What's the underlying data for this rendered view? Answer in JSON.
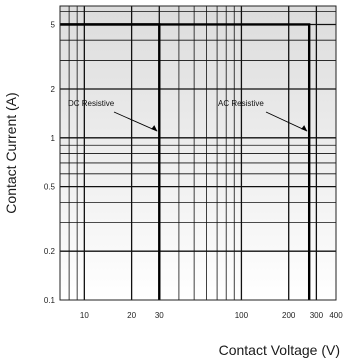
{
  "chart_data": {
    "type": "line",
    "title": "",
    "xlabel": "Contact Voltage (V)",
    "ylabel": "Contact Current (A)",
    "x_scale": "log",
    "y_scale": "log",
    "xlim": [
      7,
      400
    ],
    "ylim": [
      0.1,
      6.5
    ],
    "grid": true,
    "x_tick_values": [
      10,
      20,
      30,
      100,
      200,
      300,
      400
    ],
    "x_tick_labels": [
      "10",
      "20",
      "30",
      "100",
      "200",
      "300",
      "400"
    ],
    "y_tick_values": [
      5,
      2,
      1,
      0.5,
      0.2,
      0.1
    ],
    "y_tick_labels": [
      "5",
      "2",
      "1",
      "0.5",
      "0.2",
      "0.1"
    ],
    "series": [
      {
        "name": "DC Resistive",
        "x": [
          7,
          30,
          30
        ],
        "y": [
          5,
          5,
          0.1
        ]
      },
      {
        "name": "AC Resistive",
        "x": [
          7,
          270,
          270
        ],
        "y": [
          5,
          5,
          0.1
        ]
      }
    ],
    "annotations": [
      {
        "text": "DC Resistive",
        "x": 30,
        "y": 1.1
      },
      {
        "text": "AC Resistive",
        "x": 270,
        "y": 1.1
      }
    ]
  }
}
